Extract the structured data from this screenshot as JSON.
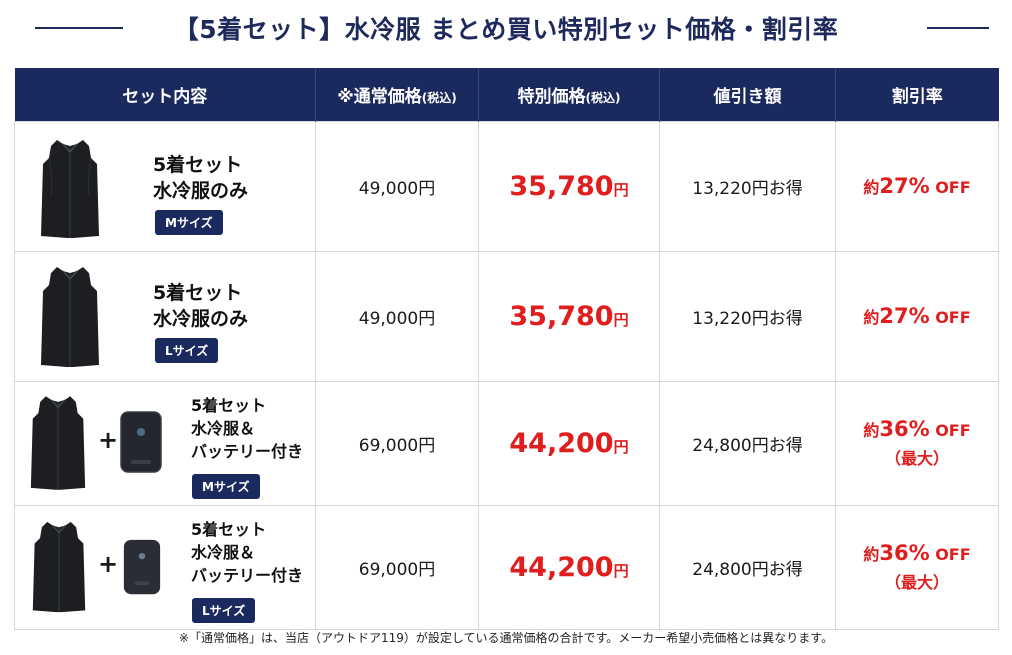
{
  "title": "【5着セット】水冷服 まとめ買い特別セット価格・割引率",
  "table": {
    "headers": {
      "content": "セット内容",
      "regular_main": "※通常価格",
      "regular_small": "(税込)",
      "special_main": "特別価格",
      "special_small": "(税込)",
      "discount": "値引き額",
      "rate": "割引率"
    },
    "rows": [
      {
        "line1": "5着セット",
        "line2": "水冷服のみ",
        "size": "Mサイズ",
        "regular": "49,000円",
        "special_num": "35,780",
        "special_yen": "円",
        "discount": "13,220円お得",
        "rate_pre": "約",
        "rate_num": "27%",
        "rate_off": "OFF"
      },
      {
        "line1": "5着セット",
        "line2": "水冷服のみ",
        "size": "Lサイズ",
        "regular": "49,000円",
        "special_num": "35,780",
        "special_yen": "円",
        "discount": "13,220円お得",
        "rate_pre": "約",
        "rate_num": "27%",
        "rate_off": "OFF"
      },
      {
        "line1": "5着セット",
        "line2": "水冷服＆",
        "line3": "バッテリー付き",
        "size": "Mサイズ",
        "plus": "+",
        "regular": "69,000円",
        "special_num": "44,200",
        "special_yen": "円",
        "discount": "24,800円お得",
        "rate_pre": "約",
        "rate_num": "36%",
        "rate_off": "OFF",
        "rate_max": "（最大）"
      },
      {
        "line1": "5着セット",
        "line2": "水冷服＆",
        "line3": "バッテリー付き",
        "size": "Lサイズ",
        "plus": "+",
        "regular": "69,000円",
        "special_num": "44,200",
        "special_yen": "円",
        "discount": "24,800円お得",
        "rate_pre": "約",
        "rate_num": "36%",
        "rate_off": "OFF",
        "rate_max": "（最大）"
      }
    ]
  },
  "footnote": "※「通常価格」は、当店（アウトドア119）が設定している通常価格の合計です。メーカー希望小売価格とは異なります。",
  "colors": {
    "navy": "#1b2a5e",
    "red": "#e01e1e"
  },
  "icons": [
    "vest-icon",
    "battery-icon"
  ]
}
